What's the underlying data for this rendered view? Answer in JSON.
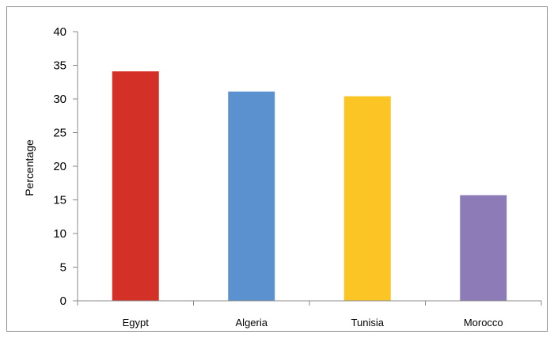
{
  "chart_data": {
    "type": "bar",
    "title": "",
    "xlabel": "",
    "ylabel": "Percentage",
    "categories": [
      "Egypt",
      "Algeria",
      "Tunisia",
      "Morocco"
    ],
    "values": [
      34.1,
      31.1,
      30.4,
      15.7
    ],
    "colors": [
      "#d33127",
      "#5b91cf",
      "#fcc526",
      "#8c7bb6"
    ],
    "ylim": [
      0,
      40
    ],
    "yticks": [
      "0",
      "5",
      "10",
      "15",
      "20",
      "25",
      "30",
      "35",
      "40"
    ],
    "grid": false,
    "legend": "none"
  }
}
